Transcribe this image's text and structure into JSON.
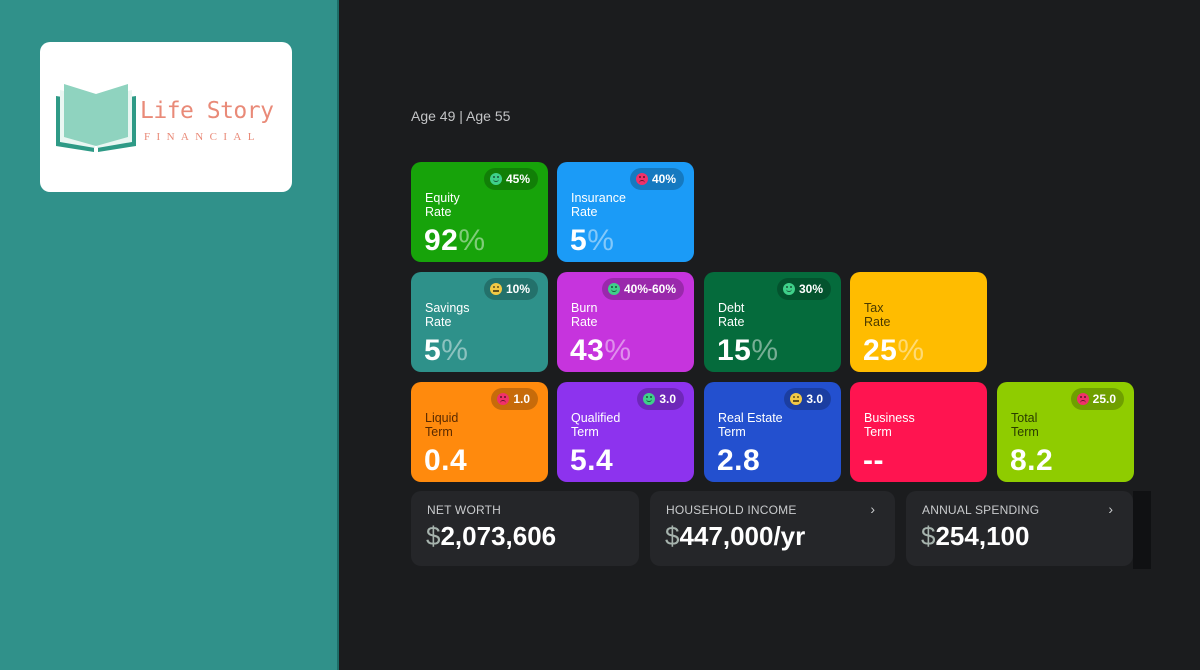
{
  "brand": {
    "name": "Life Story",
    "tagline": "FINANCIAL"
  },
  "header": {
    "ages": "Age 49 | Age 55"
  },
  "tiles": [
    {
      "label1": "Equity",
      "label2": "Rate",
      "value": "92",
      "unit": "%",
      "badge": "45%",
      "mood": "happy",
      "face_color": "#3fd08a",
      "color": "#17a30a",
      "label_color": "#ffffff"
    },
    {
      "label1": "Insurance",
      "label2": "Rate",
      "value": "5",
      "unit": "%",
      "badge": "40%",
      "mood": "sad",
      "face_color": "#f0316a",
      "color": "#1b9bf7",
      "label_color": "#ffffff"
    },
    {
      "label1": "Savings",
      "label2": "Rate",
      "value": "5",
      "unit": "%",
      "badge": "10%",
      "mood": "meh",
      "face_color": "#f2c945",
      "color": "#2e918a",
      "label_color": "#ffffff"
    },
    {
      "label1": "Burn",
      "label2": "Rate",
      "value": "43",
      "unit": "%",
      "badge": "40%-60%",
      "mood": "happy",
      "face_color": "#3fd08a",
      "color": "#c634dd",
      "label_color": "#ffffff"
    },
    {
      "label1": "Debt",
      "label2": "Rate",
      "value": "15",
      "unit": "%",
      "badge": "30%",
      "mood": "happy",
      "face_color": "#3fd08a",
      "color": "#056b3c",
      "label_color": "#ffffff"
    },
    {
      "label1": "Tax",
      "label2": "Rate",
      "value": "25",
      "unit": "%",
      "badge": "",
      "mood": "",
      "face_color": "",
      "color": "#ffbc00",
      "label_color": "#4a3a00"
    },
    {
      "label1": "Liquid",
      "label2": "Term",
      "value": "0.4",
      "unit": "",
      "badge": "1.0",
      "mood": "sad",
      "face_color": "#f0316a",
      "color": "#ff8a0d",
      "label_color": "#5a2a00"
    },
    {
      "label1": "Qualified",
      "label2": "Term",
      "value": "5.4",
      "unit": "",
      "badge": "3.0",
      "mood": "happy",
      "face_color": "#3fd08a",
      "color": "#8d33ee",
      "label_color": "#ffffff"
    },
    {
      "label1": "Real Estate",
      "label2": "Term",
      "value": "2.8",
      "unit": "",
      "badge": "3.0",
      "mood": "meh",
      "face_color": "#f2c945",
      "color": "#2350cf",
      "label_color": "#ffffff"
    },
    {
      "label1": "Business",
      "label2": "Term",
      "value": "--",
      "unit": "",
      "badge": "",
      "mood": "",
      "face_color": "",
      "color": "#ff1450",
      "label_color": "#ffffff"
    },
    {
      "label1": "Total",
      "label2": "Term",
      "value": "8.2",
      "unit": "",
      "badge": "25.0",
      "mood": "sad",
      "face_color": "#f0316a",
      "color": "#8fcc00",
      "label_color": "#2b3d00"
    }
  ],
  "stats": [
    {
      "title": "NET WORTH",
      "currency": "$",
      "value": "2,073,606",
      "chevron": ""
    },
    {
      "title": "HOUSEHOLD INCOME",
      "currency": "$",
      "value": "447,000/yr",
      "chevron": "›"
    },
    {
      "title": "ANNUAL SPENDING",
      "currency": "$",
      "value": "254,100",
      "chevron": "›"
    }
  ],
  "colors": {
    "sidebar": "#30918a",
    "background": "#1b1c1e",
    "stat_card": "#252629",
    "brand_text": "#e98a78",
    "book": "#8fd3bf"
  }
}
